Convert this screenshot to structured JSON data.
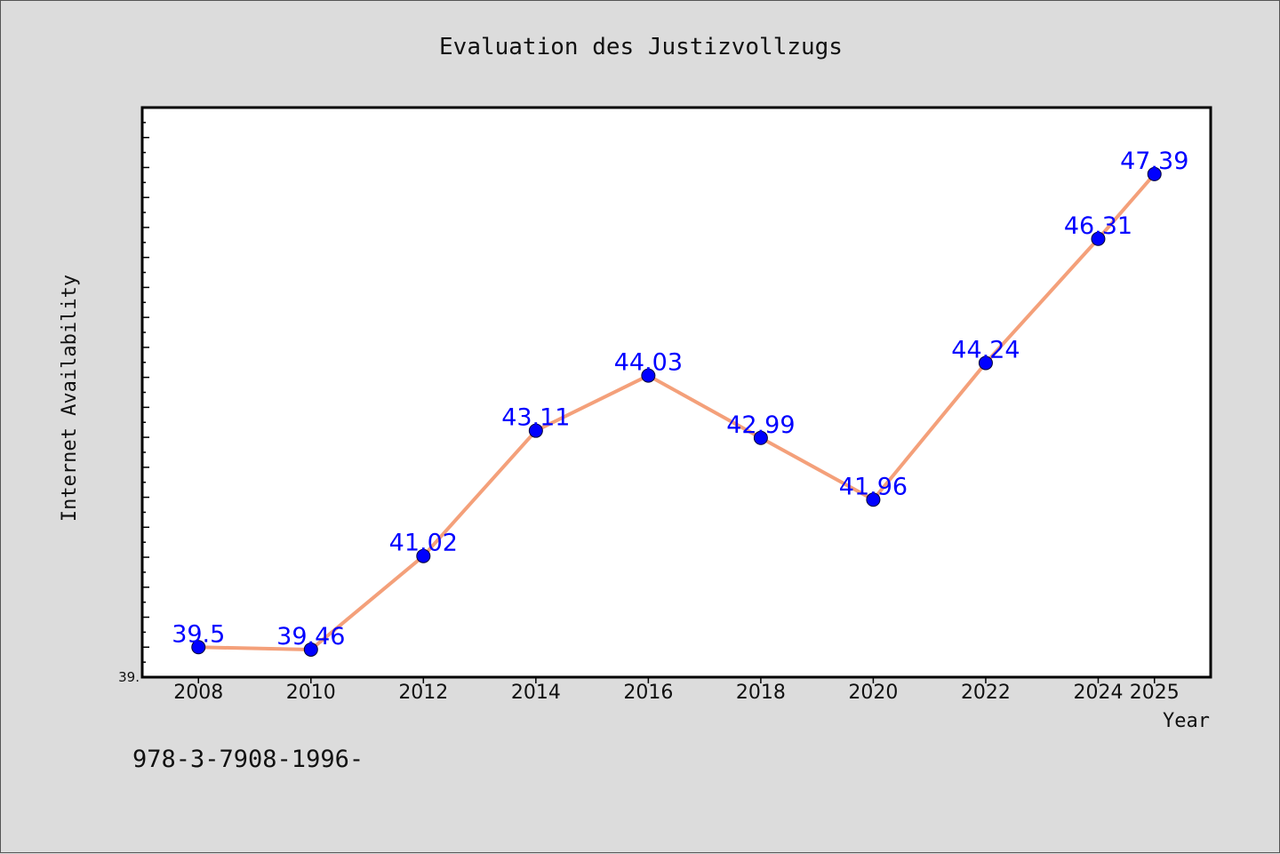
{
  "chart_data": {
    "type": "line",
    "title": "Evaluation des Justizvollzugs",
    "xlabel": "Year",
    "ylabel": "Internet Availability",
    "x": [
      "2008",
      "2010",
      "2012",
      "2014",
      "2016",
      "2018",
      "2020",
      "2022",
      "2024",
      "2025"
    ],
    "series": [
      {
        "values": [
          39.5,
          39.46,
          41.02,
          43.11,
          44.03,
          42.99,
          41.96,
          44.24,
          46.31,
          47.39
        ],
        "labels": [
          "39.5",
          "39.46",
          "41.02",
          "43.11",
          "44.03",
          "42.99",
          "41.96",
          "44.24",
          "46.31",
          "47.39"
        ],
        "line_color": "#f4a07a",
        "marker_color": "#0000ff"
      }
    ],
    "ylim": [
      39.0,
      48.5
    ],
    "y_tick_label": "39.",
    "grid": false,
    "legend": "none"
  },
  "footer": {
    "text": "978-3-7908-1996-"
  },
  "colors": {
    "background": "#dcdcdc",
    "plot_background": "#ffffff",
    "line": "#f4a07a",
    "marker": "#0000ff",
    "data_label": "#0000ff"
  }
}
